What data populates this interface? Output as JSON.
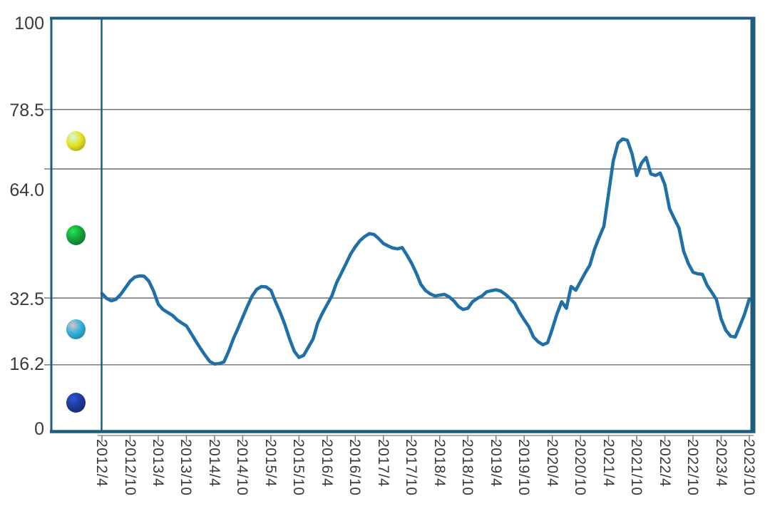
{
  "chart_data": {
    "type": "line",
    "title": "",
    "x_start": "2012/4",
    "x_end": "2023/10",
    "x_interval_months": 1,
    "x_tick_labels": [
      "2012/4",
      "2012/10",
      "2013/4",
      "2013/10",
      "2014/4",
      "2014/10",
      "2015/4",
      "2015/10",
      "2016/4",
      "2016/10",
      "2017/4",
      "2017/10",
      "2018/4",
      "2018/10",
      "2019/4",
      "2019/10",
      "2020/4",
      "2020/10",
      "2021/4",
      "2021/10",
      "2022/4",
      "2022/10",
      "2023/4",
      "2023/10"
    ],
    "y_tick_labels": [
      "100",
      "78.5",
      "64.0",
      "32.5",
      "16.2",
      "0"
    ],
    "ylim": [
      0,
      100
    ],
    "y_gridlines": [
      78.5,
      64.0,
      32.5,
      16.2
    ],
    "grid": true,
    "legend_position": "left-strip",
    "threshold_bands": [
      {
        "name": "red-band",
        "range": [
          78.5,
          100
        ],
        "dot_color": "#df2120"
      },
      {
        "name": "yellow-band",
        "range": [
          64.0,
          78.5
        ],
        "dot_color": "#e6e320"
      },
      {
        "name": "green-band",
        "range": [
          32.5,
          64.0
        ],
        "dot_color": "#16a03a"
      },
      {
        "name": "cyan-band",
        "range": [
          16.2,
          32.5
        ],
        "dot_color": "#2fb1da"
      },
      {
        "name": "blue-band",
        "range": [
          0,
          16.2
        ],
        "dot_color": "#1e3a96"
      }
    ],
    "series": [
      {
        "name": "monthly-index-line",
        "color": "#2070a8",
        "values": [
          33.6,
          32.4,
          31.8,
          32.2,
          33.4,
          35.0,
          36.6,
          37.6,
          37.9,
          37.8,
          36.6,
          34.2,
          31.0,
          29.7,
          29.0,
          28.3,
          27.2,
          26.4,
          25.7,
          23.9,
          22.0,
          20.2,
          18.5,
          17.0,
          16.4,
          16.5,
          16.9,
          19.5,
          22.5,
          25.1,
          27.8,
          30.5,
          33.0,
          34.6,
          35.3,
          35.2,
          34.4,
          31.6,
          29.0,
          26.0,
          22.5,
          19.5,
          18.0,
          18.5,
          20.5,
          22.5,
          26.4,
          28.8,
          30.9,
          33.0,
          36.2,
          38.5,
          40.8,
          43.2,
          45.0,
          46.5,
          47.5,
          48.2,
          48.0,
          47.0,
          45.8,
          45.2,
          44.7,
          44.5,
          44.8,
          43.0,
          41.0,
          38.6,
          35.8,
          34.3,
          33.5,
          33.0,
          33.2,
          33.4,
          32.8,
          31.8,
          30.4,
          29.7,
          30.0,
          31.6,
          32.4,
          33.0,
          34.0,
          34.3,
          34.5,
          34.2,
          33.4,
          32.4,
          31.2,
          29.0,
          27.2,
          25.5,
          23.0,
          21.8,
          21.1,
          21.6,
          25.0,
          28.6,
          31.6,
          30.0,
          35.3,
          34.4,
          36.5,
          38.6,
          40.5,
          44.4,
          47.3,
          50.0,
          58.0,
          66.0,
          70.3,
          71.3,
          71.0,
          67.7,
          62.4,
          65.4,
          66.8,
          62.8,
          62.4,
          63.0,
          60.1,
          54.3,
          51.9,
          49.6,
          43.9,
          40.9,
          38.8,
          38.4,
          38.3,
          35.6,
          33.9,
          32.1,
          27.4,
          24.6,
          23.2,
          23.0,
          25.7,
          28.6,
          32.3
        ]
      }
    ]
  },
  "colors": {
    "frame": "#1f5d7e",
    "inner_lines": "#2a5a74",
    "gridline": "#6f6f6f",
    "tick": "#7a7a7a",
    "text": "#3a3a3a",
    "background": "#ffffff",
    "line": "#2070a8"
  }
}
